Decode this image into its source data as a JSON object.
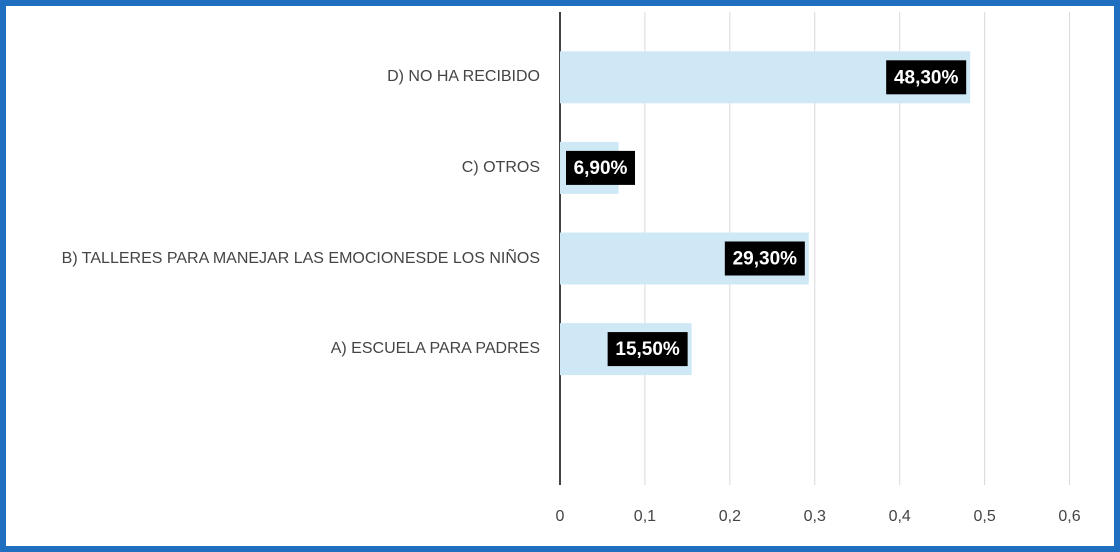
{
  "chart_data": {
    "type": "bar",
    "orientation": "horizontal",
    "categories": [
      "D) NO HA RECIBIDO",
      "C) OTROS",
      "B) TALLERES PARA MANEJAR LAS EMOCIONESDE LOS NIÑOS",
      "A) ESCUELA PARA PADRES",
      null
    ],
    "values": [
      0.483,
      0.069,
      0.293,
      0.155,
      null
    ],
    "value_labels": [
      "48,30%",
      "6,90%",
      "29,30%",
      "15,50%",
      null
    ],
    "color": "#cfe8f6",
    "xlim": [
      0,
      0.65
    ],
    "xticks": [
      0,
      {
        "value": 0.1,
        "label": "0,1"
      },
      {
        "value": 0.2,
        "label": "0,2"
      },
      {
        "value": 0.3,
        "label": "0,3"
      },
      {
        "value": 0.4,
        "label": "0,4"
      },
      {
        "value": 0.5,
        "label": "0,5"
      },
      {
        "value": 0.6,
        "label": "0,6"
      }
    ],
    "grid": true
  }
}
